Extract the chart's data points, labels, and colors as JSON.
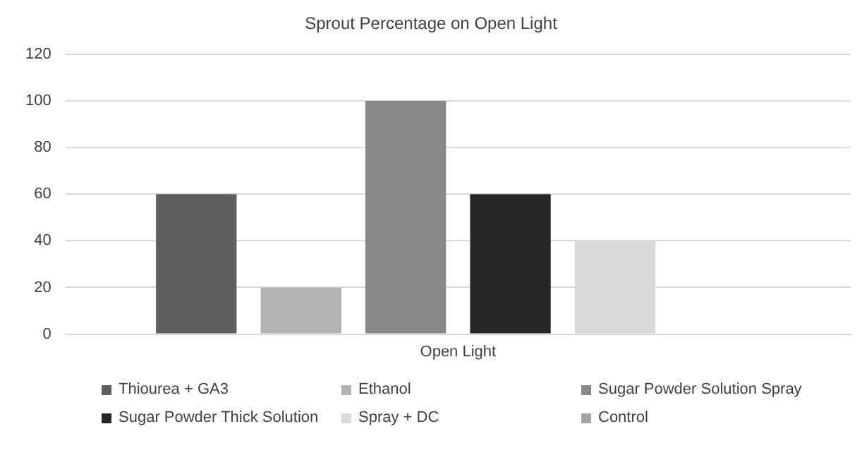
{
  "chart_data": {
    "type": "bar",
    "title": "Sprout Percentage on Open Light",
    "categories": [
      "Open Light"
    ],
    "series": [
      {
        "name": "Thiourea + GA3",
        "color": "#5f5f5f",
        "values": [
          60
        ]
      },
      {
        "name": "Ethanol",
        "color": "#b2b2b2",
        "values": [
          20
        ]
      },
      {
        "name": "Sugar Powder Solution Spray",
        "color": "#888888",
        "values": [
          100
        ]
      },
      {
        "name": "Sugar Powder Thick Solution",
        "color": "#262626",
        "values": [
          60
        ]
      },
      {
        "name": "Spray + DC",
        "color": "#d9d9d9",
        "values": [
          40
        ]
      },
      {
        "name": "Control",
        "color": "#a5a5a5",
        "values": [
          0
        ]
      }
    ],
    "ylim": [
      0,
      120
    ],
    "yticks": [
      0,
      20,
      40,
      60,
      80,
      100,
      120
    ],
    "grid": "y",
    "legend": "bottom"
  }
}
